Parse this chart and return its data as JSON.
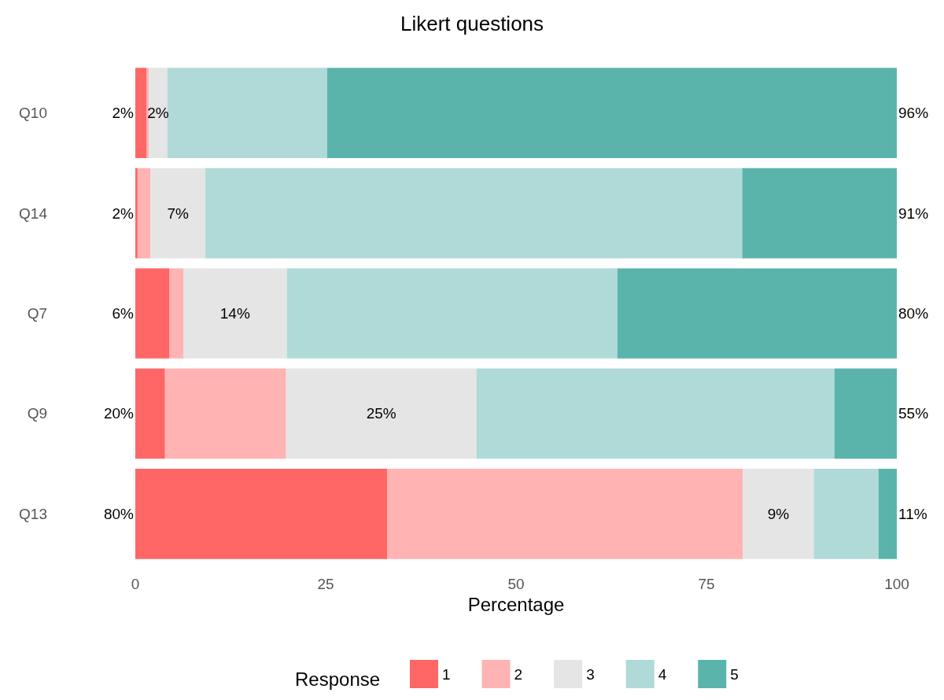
{
  "chart_data": {
    "type": "bar",
    "orientation": "horizontal",
    "stacked": true,
    "title": "Likert questions",
    "xlabel": "Percentage",
    "legend_title": "Response",
    "legend": "bottom",
    "grid": false,
    "categories": [
      "Q10",
      "Q14",
      "Q7",
      "Q9",
      "Q13"
    ],
    "xlim": [
      0,
      100
    ],
    "xticks": [
      0,
      25,
      50,
      75,
      100
    ],
    "series": [
      {
        "name": "1",
        "color": "#ff6666",
        "values": [
          1.5,
          0.3,
          4.5,
          3.9,
          33.1
        ]
      },
      {
        "name": "2",
        "color": "#ffb3b3",
        "values": [
          0.3,
          1.7,
          1.8,
          15.9,
          46.7
        ]
      },
      {
        "name": "3",
        "color": "#e5e5e5",
        "values": [
          2.4,
          7.2,
          13.6,
          25.0,
          9.3
        ],
        "value_labels": [
          "2%",
          "7%",
          "14%",
          "25%",
          "9%"
        ]
      },
      {
        "name": "4",
        "color": "#b0dad8",
        "values": [
          21,
          70.5,
          43.4,
          47,
          8.5
        ]
      },
      {
        "name": "5",
        "color": "#5bb4ab",
        "values": [
          74.8,
          20.3,
          36.7,
          8.2,
          2.4
        ]
      }
    ],
    "annotations": [
      "2%",
      "2%",
      "6%",
      "20%",
      "80%",
      "96%",
      "91%",
      "80%",
      "55%",
      "11%"
    ]
  }
}
